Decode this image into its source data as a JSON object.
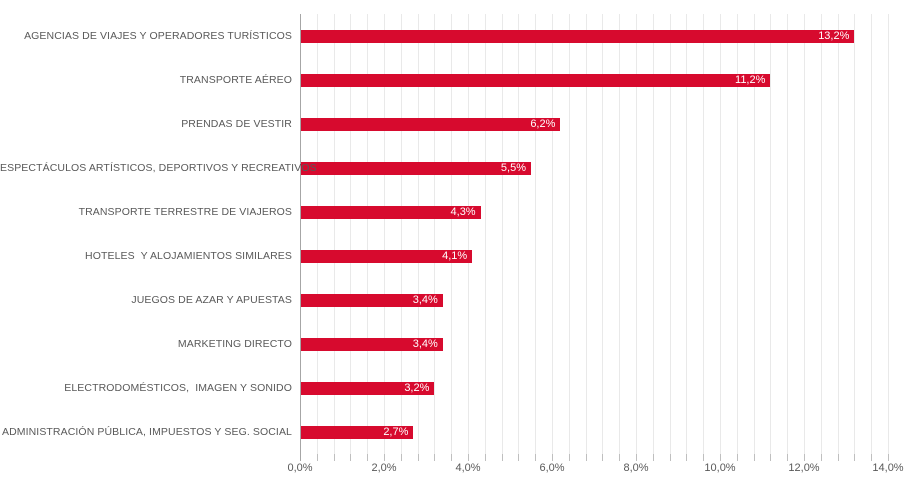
{
  "chart_data": {
    "type": "bar",
    "orientation": "horizontal",
    "title": "",
    "xlabel": "",
    "ylabel": "",
    "categories": [
      "AGENCIAS DE VIAJES Y OPERADORES TURÍSTICOS",
      "TRANSPORTE AÉREO",
      "PRENDAS DE VESTIR",
      "ESPECTÁCULOS ARTÍSTICOS, DEPORTIVOS Y RECREATIVOS",
      "TRANSPORTE TERRESTRE DE VIAJEROS",
      "HOTELES  Y ALOJAMIENTOS SIMILARES",
      "JUEGOS DE AZAR Y APUESTAS",
      "MARKETING DIRECTO",
      "ELECTRODOMÉSTICOS,  IMAGEN Y SONIDO",
      "ADMINISTRACIÓN PÚBLICA, IMPUESTOS Y SEG. SOCIAL"
    ],
    "values": [
      13.2,
      11.2,
      6.2,
      5.5,
      4.3,
      4.1,
      3.4,
      3.4,
      3.2,
      2.7
    ],
    "value_labels": [
      "13,2%",
      "11,2%",
      "6,2%",
      "5,5%",
      "4,3%",
      "4,1%",
      "3,4%",
      "3,4%",
      "3,2%",
      "2,7%"
    ],
    "xlim": [
      0,
      14
    ],
    "x_major_unit": 2,
    "x_minor_unit": 0.4,
    "x_tick_labels": [
      "0,0%",
      "2,0%",
      "4,0%",
      "6,0%",
      "8,0%",
      "10,0%",
      "12,0%",
      "14,0%"
    ],
    "grid": "vertical-minor",
    "legend": "none",
    "decimal_separator": ",",
    "colors": {
      "bar": "#D70A2E",
      "value_label": "#FFFFFF",
      "category_label": "#595959",
      "axis_label": "#595959",
      "gridline": "#E9E9E9",
      "axis_line": "#A6A6A6",
      "background": "#FFFFFF"
    }
  }
}
